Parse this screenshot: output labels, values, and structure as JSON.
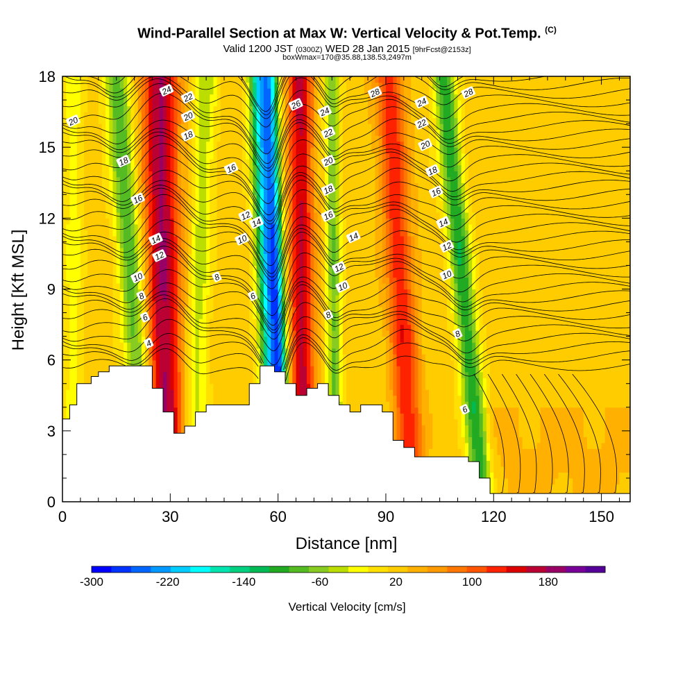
{
  "chart_data": {
    "type": "heatmap",
    "title": "Wind-Parallel Section at Max W: Vertical Velocity & Pot.Temp.",
    "title_suffix": "(C)",
    "subtitle_valid": "Valid 1200 JST",
    "subtitle_utc": "(0300Z)",
    "subtitle_date": "WED 28 Jan 2015",
    "subtitle_fcst": "[9hrFcst@2153z]",
    "subtitle2": "boxWmax=170@35.88,138.53,2497m",
    "xlabel": "Distance [nm]",
    "ylabel": "Height [Kft MSL]",
    "xlim": [
      0,
      158
    ],
    "ylim": [
      0,
      18
    ],
    "xticks": [
      0,
      30,
      60,
      90,
      120,
      150
    ],
    "yticks": [
      0,
      3,
      6,
      9,
      12,
      15,
      18
    ],
    "colorbar": {
      "title": "Vertical Velocity [cm/s]",
      "range": [
        -300,
        240
      ],
      "tick_values": [
        -300,
        -220,
        -140,
        -60,
        20,
        100,
        180
      ],
      "tick_labels": [
        "-300",
        "-220",
        "-140",
        "-60",
        "20",
        "100",
        "180"
      ],
      "colors": [
        "#0000ff",
        "#0033ff",
        "#0066ff",
        "#0099ff",
        "#00ccff",
        "#00ffff",
        "#00e5b0",
        "#00d080",
        "#00bb55",
        "#22aa22",
        "#55bb22",
        "#88cc22",
        "#bbdd00",
        "#ffff00",
        "#ffe000",
        "#ffcc00",
        "#ffb000",
        "#ff9900",
        "#ff7700",
        "#ff5500",
        "#ff2200",
        "#dd0000",
        "#bb0033",
        "#990066",
        "#770099",
        "#550099"
      ]
    },
    "terrain": [
      [
        0,
        3.5
      ],
      [
        2,
        3.5
      ],
      [
        2,
        4.1
      ],
      [
        4,
        4.1
      ],
      [
        4,
        5.0
      ],
      [
        8,
        5.0
      ],
      [
        8,
        5.3
      ],
      [
        10,
        5.3
      ],
      [
        10,
        5.5
      ],
      [
        13,
        5.5
      ],
      [
        13,
        5.75
      ],
      [
        25,
        5.75
      ],
      [
        25,
        4.8
      ],
      [
        28,
        4.8
      ],
      [
        28,
        3.8
      ],
      [
        31,
        3.8
      ],
      [
        31,
        2.9
      ],
      [
        34,
        2.9
      ],
      [
        34,
        3.2
      ],
      [
        37,
        3.2
      ],
      [
        37,
        3.8
      ],
      [
        40,
        3.8
      ],
      [
        40,
        4.1
      ],
      [
        43,
        4.1
      ],
      [
        43,
        4.1
      ],
      [
        49,
        4.1
      ],
      [
        49,
        4.1
      ],
      [
        52,
        4.1
      ],
      [
        52,
        5.0
      ],
      [
        55,
        5.0
      ],
      [
        55,
        5.75
      ],
      [
        59,
        5.75
      ],
      [
        59,
        5.5
      ],
      [
        62,
        5.5
      ],
      [
        62,
        5.0
      ],
      [
        65,
        5.0
      ],
      [
        65,
        4.5
      ],
      [
        68,
        4.5
      ],
      [
        68,
        4.8
      ],
      [
        71,
        4.8
      ],
      [
        71,
        5.0
      ],
      [
        74,
        5.0
      ],
      [
        74,
        4.5
      ],
      [
        77,
        4.5
      ],
      [
        77,
        4.1
      ],
      [
        80,
        4.1
      ],
      [
        80,
        3.8
      ],
      [
        83,
        3.8
      ],
      [
        83,
        4.1
      ],
      [
        89,
        4.1
      ],
      [
        89,
        3.8
      ],
      [
        92,
        3.8
      ],
      [
        92,
        2.6
      ],
      [
        95,
        2.6
      ],
      [
        95,
        2.3
      ],
      [
        98,
        2.3
      ],
      [
        98,
        1.9
      ],
      [
        113,
        1.9
      ],
      [
        113,
        1.7
      ],
      [
        116,
        1.7
      ],
      [
        116,
        1.0
      ],
      [
        119,
        1.0
      ],
      [
        119,
        0.35
      ],
      [
        158,
        0.35
      ]
    ],
    "theta_levels": [
      4,
      6,
      8,
      10,
      12,
      14,
      16,
      18,
      20,
      22,
      24,
      26,
      28
    ],
    "contour_labels": [
      {
        "x": 3,
        "y": 16.1,
        "text": "20"
      },
      {
        "x": 29,
        "y": 17.4,
        "text": "24"
      },
      {
        "x": 35,
        "y": 17.1,
        "text": "22"
      },
      {
        "x": 35,
        "y": 16.3,
        "text": "20"
      },
      {
        "x": 35,
        "y": 15.5,
        "text": "18"
      },
      {
        "x": 17,
        "y": 14.4,
        "text": "18"
      },
      {
        "x": 21,
        "y": 12.8,
        "text": "16"
      },
      {
        "x": 47,
        "y": 14.1,
        "text": "16"
      },
      {
        "x": 26,
        "y": 11.1,
        "text": "14"
      },
      {
        "x": 27,
        "y": 10.4,
        "text": "12"
      },
      {
        "x": 51,
        "y": 12.1,
        "text": "12"
      },
      {
        "x": 54,
        "y": 11.8,
        "text": "14"
      },
      {
        "x": 50,
        "y": 11.1,
        "text": "10"
      },
      {
        "x": 21,
        "y": 9.5,
        "text": "10"
      },
      {
        "x": 22,
        "y": 8.7,
        "text": "8"
      },
      {
        "x": 23,
        "y": 7.8,
        "text": "6"
      },
      {
        "x": 24,
        "y": 6.7,
        "text": "4"
      },
      {
        "x": 43,
        "y": 9.5,
        "text": "8"
      },
      {
        "x": 53,
        "y": 8.7,
        "text": "6"
      },
      {
        "x": 65,
        "y": 16.8,
        "text": "26"
      },
      {
        "x": 73,
        "y": 16.5,
        "text": "24"
      },
      {
        "x": 74,
        "y": 15.6,
        "text": "22"
      },
      {
        "x": 74,
        "y": 14.4,
        "text": "20"
      },
      {
        "x": 74,
        "y": 13.2,
        "text": "18"
      },
      {
        "x": 74,
        "y": 12.1,
        "text": "16"
      },
      {
        "x": 81,
        "y": 11.2,
        "text": "14"
      },
      {
        "x": 77,
        "y": 9.9,
        "text": "12"
      },
      {
        "x": 78,
        "y": 9.1,
        "text": "10"
      },
      {
        "x": 74,
        "y": 7.9,
        "text": "8"
      },
      {
        "x": 87,
        "y": 17.3,
        "text": "28"
      },
      {
        "x": 100,
        "y": 16.9,
        "text": "24"
      },
      {
        "x": 100,
        "y": 16.0,
        "text": "22"
      },
      {
        "x": 101,
        "y": 15.1,
        "text": "20"
      },
      {
        "x": 103,
        "y": 14.0,
        "text": "18"
      },
      {
        "x": 104,
        "y": 13.1,
        "text": "16"
      },
      {
        "x": 106,
        "y": 11.8,
        "text": "14"
      },
      {
        "x": 107,
        "y": 10.8,
        "text": "12"
      },
      {
        "x": 107,
        "y": 9.6,
        "text": "10"
      },
      {
        "x": 110,
        "y": 7.1,
        "text": "8"
      },
      {
        "x": 112,
        "y": 3.9,
        "text": "6"
      },
      {
        "x": 113,
        "y": 17.3,
        "text": "28"
      }
    ],
    "bands": [
      {
        "x_bottom": 3,
        "x_top": 3,
        "width": 2.5,
        "w": -40
      },
      {
        "x_bottom": 24,
        "x_top": 15,
        "width": 3.5,
        "w": -110
      },
      {
        "x_bottom": 29,
        "x_top": 27,
        "width": 5,
        "w": 160
      },
      {
        "x_bottom": 36,
        "x_top": 40,
        "width": 3,
        "w": -60
      },
      {
        "x_bottom": 60,
        "x_top": 55,
        "width": 3,
        "w": -230
      },
      {
        "x_bottom": 62,
        "x_top": 58,
        "width": 2,
        "w": -140
      },
      {
        "x_bottom": 67,
        "x_top": 66,
        "width": 3.5,
        "w": 140
      },
      {
        "x_bottom": 76,
        "x_top": 75,
        "width": 2,
        "w": -90
      },
      {
        "x_bottom": 97,
        "x_top": 91,
        "width": 4,
        "w": 110
      },
      {
        "x_bottom": 117,
        "x_top": 106,
        "width": 3,
        "w": -130
      }
    ]
  }
}
